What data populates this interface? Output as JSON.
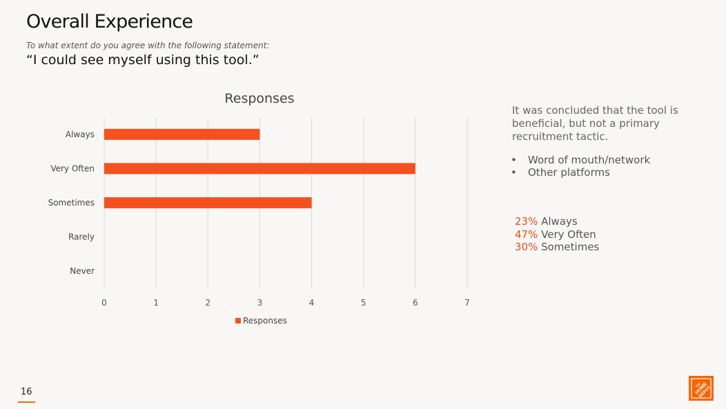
{
  "header": {
    "title": "Overall Experience",
    "subtitle": "To what extent do you agree with the following statement:",
    "statement": "“I could see myself using this tool.”"
  },
  "chart_data": {
    "type": "bar",
    "orientation": "horizontal",
    "title": "Responses",
    "categories": [
      "Always",
      "Very Often",
      "Sometimes",
      "Rarely",
      "Never"
    ],
    "values": [
      3,
      6,
      4,
      0,
      0
    ],
    "series_name": "Responses",
    "xlim": [
      0,
      7
    ],
    "x_ticks": [
      0,
      1,
      2,
      3,
      4,
      5,
      6,
      7
    ],
    "grid": "vertical",
    "legend_position": "bottom",
    "color": "#f4511e"
  },
  "sidebar": {
    "conclusion": "It was concluded that the tool is beneficial, but not a primary recruitment tactic.",
    "bullet_char": "•",
    "bullets": [
      "Word of mouth/network",
      "Other platforms"
    ],
    "stats": [
      {
        "pct": "23%",
        "label": "Always"
      },
      {
        "pct": "47%",
        "label": "Very Often"
      },
      {
        "pct": "30%",
        "label": "Sometimes"
      }
    ]
  },
  "footer": {
    "page_number": "16",
    "logo_text": "THE HOME DEPOT",
    "accent": "#f96302"
  }
}
